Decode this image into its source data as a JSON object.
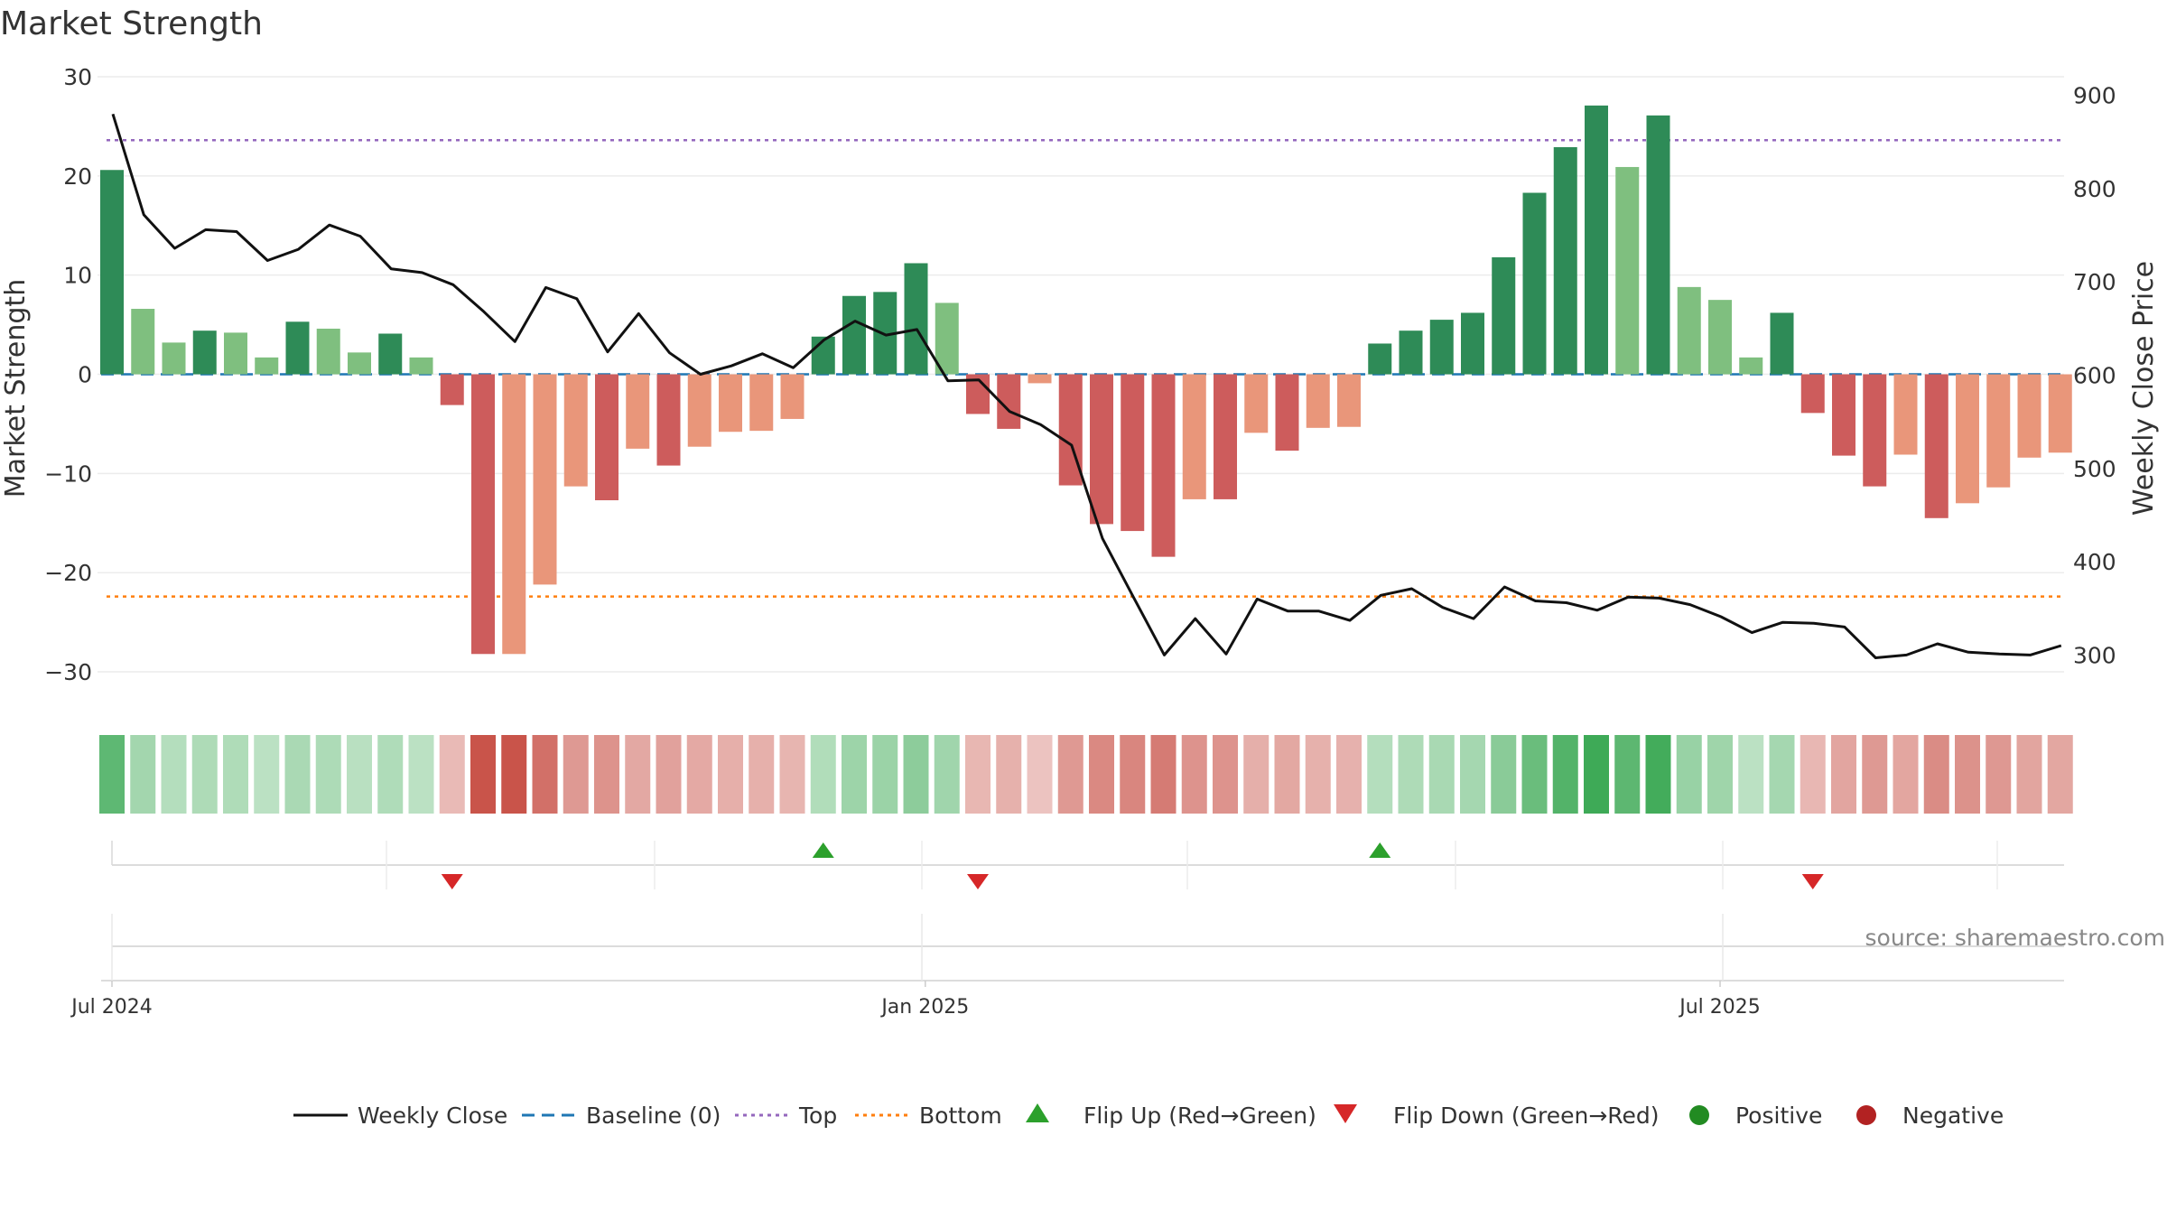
{
  "chart_data": {
    "type": "bar",
    "title": "Market Strength",
    "ylabel": "Market Strength",
    "y2label": "Weekly Close Price",
    "ylim": [
      -33,
      30
    ],
    "y_ticks": [
      30,
      20,
      10,
      0,
      -10,
      -20,
      -30
    ],
    "y_tick_labels": [
      "30",
      "20",
      "10",
      "0",
      "−10",
      "−20",
      "−30"
    ],
    "y2lim": [
      250,
      920
    ],
    "y2_ticks": [
      900,
      800,
      700,
      600,
      500,
      400,
      300
    ],
    "y2_tick_labels": [
      "900",
      "800",
      "700",
      "600",
      "500",
      "400",
      "300"
    ],
    "x_tick_labels": [
      "Jul 2024",
      "Jan 2025",
      "Jul 2025"
    ],
    "x_tick_weeks": [
      0,
      26.3,
      52
    ],
    "top_line": 23.6,
    "bottom_line": -22.4,
    "strength": [
      20.6,
      6.6,
      3.2,
      4.4,
      4.2,
      1.7,
      5.3,
      4.6,
      2.2,
      4.1,
      1.7,
      -3.1,
      -28.2,
      -28.2,
      -21.2,
      -11.3,
      -12.7,
      -7.5,
      -9.2,
      -7.3,
      -5.8,
      -5.7,
      -4.5,
      3.8,
      7.9,
      8.3,
      11.2,
      7.2,
      -4.0,
      -5.5,
      -0.9,
      -11.2,
      -15.1,
      -15.8,
      -18.4,
      -12.6,
      -12.6,
      -5.9,
      -7.7,
      -5.4,
      -5.3,
      3.1,
      4.4,
      5.5,
      6.2,
      11.8,
      18.3,
      22.9,
      27.1,
      20.9,
      26.1,
      8.8,
      7.5,
      1.7,
      6.2,
      -3.9,
      -8.2,
      -11.3,
      -8.1,
      -14.5,
      -13.0,
      -11.4,
      -8.4,
      -7.9
    ],
    "bar_strong_flags": [
      1,
      0,
      0,
      1,
      0,
      0,
      1,
      0,
      0,
      1,
      0,
      1,
      1,
      0,
      0,
      0,
      1,
      0,
      1,
      0,
      0,
      0,
      0,
      1,
      1,
      1,
      1,
      0,
      1,
      1,
      0,
      1,
      1,
      1,
      1,
      0,
      1,
      0,
      1,
      0,
      0,
      1,
      1,
      1,
      1,
      1,
      1,
      1,
      1,
      0,
      1,
      0,
      0,
      0,
      1,
      1,
      1,
      1,
      0,
      1,
      0,
      0,
      0,
      0
    ],
    "weekly_close": [
      880,
      772,
      736,
      756,
      754,
      723,
      735,
      761,
      749,
      714,
      710,
      697,
      668,
      636,
      694,
      682,
      625,
      666,
      624,
      601,
      610,
      623,
      608,
      638,
      658,
      643,
      649,
      594,
      595,
      561,
      547,
      525,
      425,
      362,
      300,
      339,
      301,
      360,
      347,
      347,
      337,
      364,
      371,
      351,
      339,
      373,
      358,
      356,
      348,
      362,
      361,
      354,
      341,
      324,
      335,
      334,
      330,
      297,
      300,
      312,
      303,
      301,
      300,
      310
    ],
    "flip_up_weeks": [
      23,
      41
    ],
    "flip_down_weeks": [
      11,
      28,
      55
    ],
    "colors": {
      "strong_green": "#2e8b57",
      "light_green": "#7fbf7f",
      "strong_red": "#cd5c5c",
      "light_red": "#e9967a",
      "price_line": "#111111",
      "baseline": "#1f77b4",
      "top_line": "#9467bd",
      "bottom_line": "#ff7f0e",
      "flip_up": "#2ca02c",
      "flip_down": "#d62728",
      "positive_dot": "#228b22",
      "negative_dot": "#b22222"
    },
    "legend": [
      "Weekly Close",
      "Baseline (0)",
      "Top",
      "Bottom",
      "Flip Up (Red→Green)",
      "Flip Down (Green→Red)",
      "Positive",
      "Negative"
    ]
  },
  "source": "source: sharemaestro.com"
}
